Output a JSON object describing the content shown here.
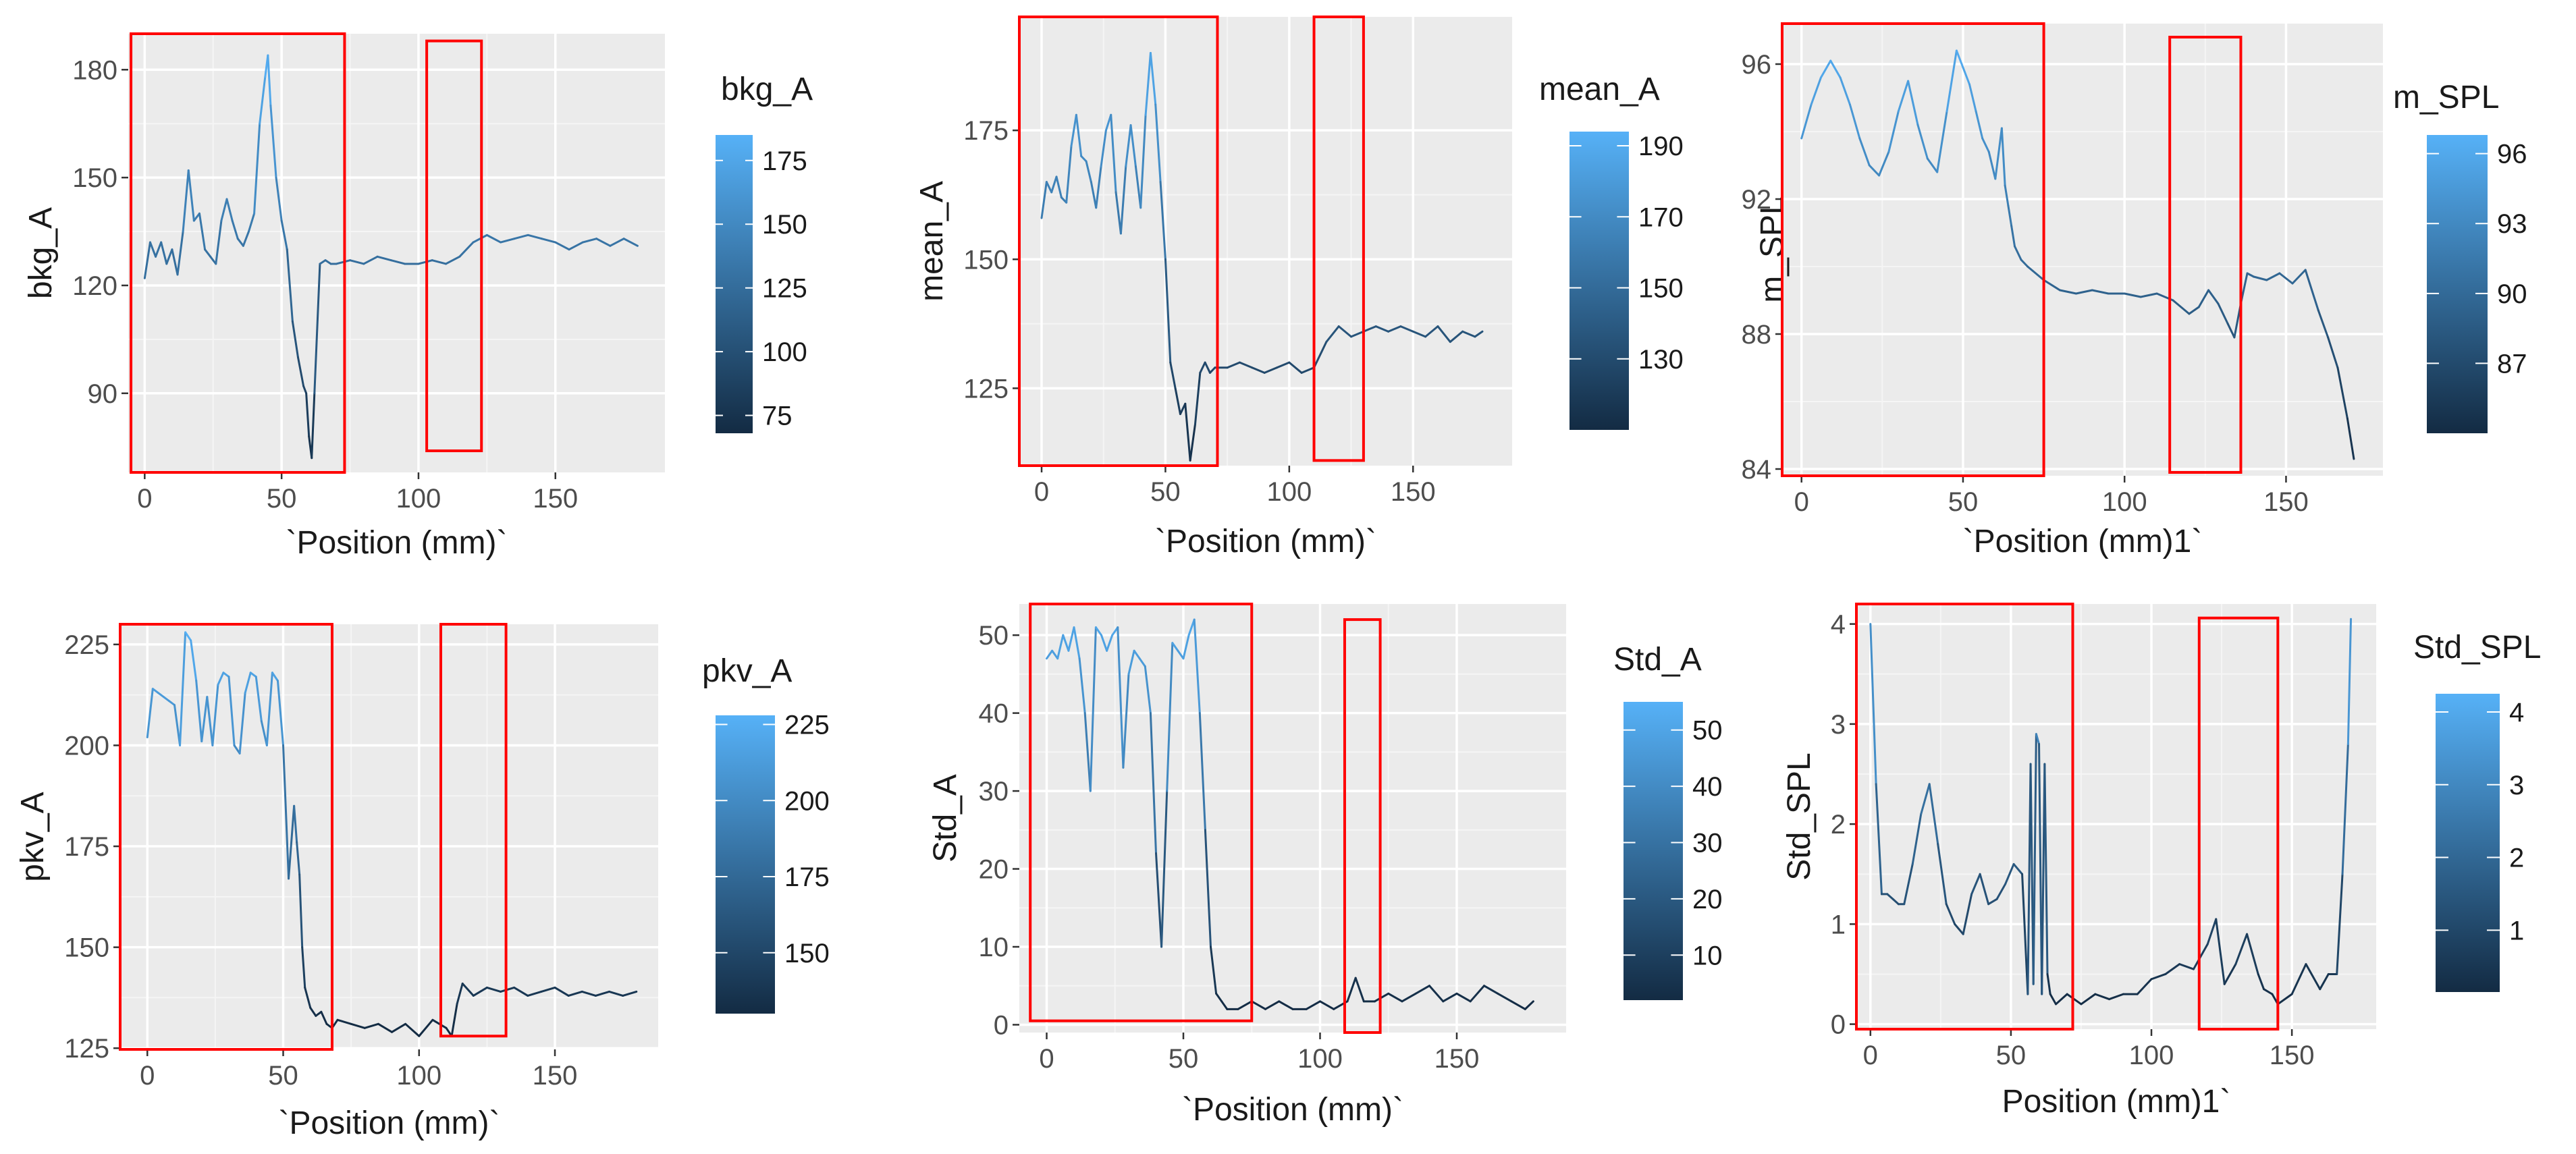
{
  "colors": {
    "panel_bg": "#ebebeb",
    "grid_major": "#ffffff",
    "grid_minor": "#f5f5f5",
    "line_low": "#132b43",
    "line_high": "#56b1f7",
    "highlight_box": "#ff0000"
  },
  "chart_data": [
    {
      "type": "line",
      "color_scale": "gradient",
      "ylabel": "bkg_A",
      "xlabel": "`Position (mm)`",
      "legend_title": "bkg_A",
      "xlim": [
        -6,
        190
      ],
      "ylim": [
        68,
        190
      ],
      "xticks": [
        0,
        50,
        100,
        150
      ],
      "xtick_labels": [
        "0",
        "50",
        "100",
        "150"
      ],
      "yticks": [
        90,
        120,
        150,
        180
      ],
      "ytick_labels": [
        "90",
        "120",
        "150",
        "180"
      ],
      "legend_ticks": [
        175,
        150,
        125,
        100,
        75
      ],
      "legend_tick_labels": [
        "175",
        "150",
        "125",
        "100",
        "75"
      ],
      "legend_range": [
        68,
        185
      ],
      "highlight_ranges": [
        {
          "x": [
            -5,
            73
          ],
          "y": [
            68,
            190
          ]
        },
        {
          "x": [
            103,
            123
          ],
          "y": [
            74,
            188
          ]
        }
      ],
      "x": [
        0,
        2,
        4,
        6,
        8,
        10,
        12,
        14,
        16,
        18,
        20,
        22,
        24,
        26,
        28,
        30,
        32,
        34,
        36,
        38,
        40,
        42,
        44,
        45,
        46,
        48,
        50,
        52,
        54,
        56,
        58,
        59,
        60,
        61,
        62,
        64,
        66,
        68,
        70,
        75,
        80,
        85,
        90,
        95,
        100,
        105,
        110,
        115,
        120,
        125,
        130,
        135,
        140,
        145,
        150,
        155,
        160,
        165,
        170,
        175,
        180
      ],
      "y": [
        122,
        132,
        128,
        132,
        126,
        130,
        123,
        135,
        152,
        138,
        140,
        130,
        128,
        126,
        138,
        144,
        138,
        133,
        131,
        135,
        140,
        165,
        178,
        184,
        170,
        150,
        138,
        130,
        110,
        100,
        92,
        90,
        78,
        72,
        90,
        126,
        127,
        126,
        126,
        127,
        126,
        128,
        127,
        126,
        126,
        127,
        126,
        128,
        132,
        134,
        132,
        133,
        134,
        133,
        132,
        130,
        132,
        133,
        131,
        133,
        131
      ]
    },
    {
      "type": "line",
      "color_scale": "gradient",
      "ylabel": "mean_A",
      "xlabel": "`Position (mm)`",
      "legend_title": "mean_A",
      "xlim": [
        -9,
        190
      ],
      "ylim": [
        110,
        197
      ],
      "xticks": [
        0,
        50,
        100,
        150
      ],
      "xtick_labels": [
        "0",
        "50",
        "100",
        "150"
      ],
      "yticks": [
        125,
        150,
        175
      ],
      "ytick_labels": [
        "125",
        "150",
        "175"
      ],
      "legend_ticks": [
        190,
        170,
        150,
        130
      ],
      "legend_tick_labels": [
        "190",
        "170",
        "150",
        "130"
      ],
      "legend_range": [
        110,
        194
      ],
      "highlight_ranges": [
        {
          "x": [
            -9,
            71
          ],
          "y": [
            110,
            197
          ]
        },
        {
          "x": [
            110,
            130
          ],
          "y": [
            111,
            197
          ]
        }
      ],
      "x": [
        0,
        2,
        4,
        6,
        8,
        10,
        12,
        14,
        16,
        18,
        20,
        22,
        24,
        26,
        28,
        30,
        32,
        34,
        36,
        38,
        40,
        42,
        44,
        46,
        48,
        50,
        52,
        54,
        56,
        58,
        60,
        62,
        64,
        66,
        68,
        70,
        75,
        80,
        85,
        90,
        95,
        100,
        105,
        110,
        115,
        120,
        125,
        130,
        135,
        140,
        145,
        150,
        155,
        160,
        165,
        170,
        175,
        178
      ],
      "y": [
        158,
        165,
        163,
        166,
        162,
        161,
        172,
        178,
        170,
        169,
        165,
        160,
        168,
        175,
        178,
        163,
        155,
        168,
        176,
        168,
        160,
        178,
        190,
        180,
        165,
        150,
        130,
        125,
        120,
        122,
        111,
        118,
        128,
        130,
        128,
        129,
        129,
        130,
        129,
        128,
        129,
        130,
        128,
        129,
        134,
        137,
        135,
        136,
        137,
        136,
        137,
        136,
        135,
        137,
        134,
        136,
        135,
        136
      ]
    },
    {
      "type": "line",
      "color_scale": "gradient",
      "ylabel": "m_SPL",
      "xlabel": "`Position (mm)1`",
      "legend_title": "m_SPL",
      "xlim": [
        -6,
        180
      ],
      "ylim": [
        83.8,
        97.2
      ],
      "xticks": [
        0,
        50,
        100,
        150
      ],
      "xtick_labels": [
        "0",
        "50",
        "100",
        "150"
      ],
      "yticks": [
        84,
        88,
        92,
        96
      ],
      "ytick_labels": [
        "84",
        "88",
        "92",
        "96"
      ],
      "legend_ticks": [
        96,
        93,
        90,
        87
      ],
      "legend_tick_labels": [
        "96",
        "93",
        "90",
        "87"
      ],
      "legend_range": [
        84,
        96.8
      ],
      "highlight_ranges": [
        {
          "x": [
            -6,
            75
          ],
          "y": [
            83.8,
            97.2
          ]
        },
        {
          "x": [
            114,
            136
          ],
          "y": [
            83.9,
            96.8
          ]
        }
      ],
      "x": [
        0,
        3,
        6,
        9,
        12,
        15,
        18,
        21,
        24,
        27,
        30,
        33,
        36,
        39,
        42,
        45,
        48,
        50,
        52,
        54,
        56,
        58,
        60,
        62,
        63,
        64,
        65,
        66,
        68,
        70,
        75,
        80,
        85,
        90,
        95,
        100,
        105,
        110,
        115,
        120,
        123,
        126,
        129,
        132,
        134,
        136,
        138,
        140,
        144,
        148,
        152,
        156,
        160,
        163,
        166,
        169,
        171
      ],
      "y": [
        93.8,
        94.8,
        95.6,
        96.1,
        95.6,
        94.8,
        93.8,
        93.0,
        92.7,
        93.4,
        94.6,
        95.5,
        94.2,
        93.2,
        92.8,
        94.6,
        96.4,
        95.9,
        95.4,
        94.6,
        93.8,
        93.4,
        92.6,
        94.1,
        92.4,
        91.8,
        91.2,
        90.6,
        90.2,
        90.0,
        89.6,
        89.3,
        89.2,
        89.3,
        89.2,
        89.2,
        89.1,
        89.2,
        89.0,
        88.6,
        88.8,
        89.3,
        88.9,
        88.3,
        87.9,
        88.9,
        89.8,
        89.7,
        89.6,
        89.8,
        89.5,
        89.9,
        88.7,
        87.9,
        87.0,
        85.5,
        84.3
      ]
    },
    {
      "type": "line",
      "color_scale": "gradient",
      "ylabel": "pkv_A",
      "xlabel": "`Position (mm)`",
      "legend_title": "pkv_A",
      "xlim": [
        -10,
        188
      ],
      "ylim": [
        124.7,
        230
      ],
      "xticks": [
        0,
        50,
        100,
        150
      ],
      "xtick_labels": [
        "0",
        "50",
        "100",
        "150"
      ],
      "yticks": [
        125,
        150,
        175,
        200,
        225
      ],
      "ytick_labels": [
        "125",
        "150",
        "175",
        "200",
        "225"
      ],
      "legend_ticks": [
        225,
        200,
        175,
        150
      ],
      "legend_tick_labels": [
        "225",
        "200",
        "175",
        "150"
      ],
      "legend_range": [
        130,
        228
      ],
      "highlight_ranges": [
        {
          "x": [
            -10,
            68
          ],
          "y": [
            124.7,
            230
          ]
        },
        {
          "x": [
            108,
            132
          ],
          "y": [
            128,
            230
          ]
        }
      ],
      "x": [
        0,
        2,
        4,
        6,
        8,
        10,
        12,
        14,
        16,
        18,
        20,
        22,
        24,
        26,
        28,
        30,
        32,
        34,
        36,
        38,
        40,
        42,
        44,
        46,
        48,
        50,
        52,
        54,
        55,
        56,
        57,
        58,
        60,
        62,
        64,
        66,
        68,
        70,
        75,
        80,
        85,
        90,
        95,
        100,
        105,
        110,
        112,
        114,
        116,
        120,
        125,
        130,
        135,
        140,
        145,
        150,
        155,
        160,
        165,
        170,
        175,
        180
      ],
      "y": [
        202,
        214,
        213,
        212,
        211,
        210,
        200,
        228,
        226,
        216,
        201,
        212,
        200,
        215,
        218,
        217,
        200,
        198,
        213,
        218,
        217,
        206,
        200,
        218,
        216,
        200,
        167,
        185,
        176,
        168,
        150,
        140,
        135,
        133,
        134,
        131,
        130,
        132,
        131,
        130,
        131,
        129,
        131,
        128,
        132,
        130,
        128,
        136,
        141,
        138,
        140,
        139,
        140,
        138,
        139,
        140,
        138,
        139,
        138,
        139,
        138,
        139
      ]
    },
    {
      "type": "line",
      "color_scale": "gradient",
      "ylabel": "Std_A",
      "xlabel": "`Position (mm)`",
      "legend_title": "Std_A",
      "xlim": [
        -10,
        190
      ],
      "ylim": [
        -1,
        54
      ],
      "xticks": [
        0,
        50,
        100,
        150
      ],
      "xtick_labels": [
        "0",
        "50",
        "100",
        "150"
      ],
      "yticks": [
        0,
        10,
        20,
        30,
        40,
        50
      ],
      "ytick_labels": [
        "0",
        "10",
        "20",
        "30",
        "40",
        "50"
      ],
      "legend_ticks": [
        50,
        40,
        30,
        20,
        10
      ],
      "legend_tick_labels": [
        "50",
        "40",
        "30",
        "20",
        "10"
      ],
      "legend_range": [
        2,
        55
      ],
      "highlight_ranges": [
        {
          "x": [
            -6,
            75
          ],
          "y": [
            0.5,
            54
          ]
        },
        {
          "x": [
            109,
            122
          ],
          "y": [
            -1,
            52
          ]
        }
      ],
      "x": [
        0,
        2,
        4,
        6,
        8,
        10,
        12,
        14,
        16,
        18,
        20,
        22,
        24,
        26,
        28,
        30,
        32,
        34,
        36,
        38,
        40,
        42,
        44,
        46,
        48,
        50,
        52,
        54,
        56,
        58,
        60,
        62,
        64,
        66,
        70,
        75,
        80,
        85,
        90,
        95,
        100,
        105,
        110,
        113,
        116,
        120,
        125,
        130,
        135,
        140,
        145,
        150,
        155,
        160,
        165,
        170,
        175,
        178
      ],
      "y": [
        47,
        48,
        47,
        50,
        48,
        51,
        47,
        40,
        30,
        51,
        50,
        48,
        50,
        51,
        33,
        45,
        48,
        47,
        46,
        40,
        22,
        10,
        30,
        49,
        48,
        47,
        50,
        52,
        40,
        25,
        10,
        4,
        3,
        2,
        2,
        3,
        2,
        3,
        2,
        2,
        3,
        2,
        3,
        6,
        3,
        3,
        4,
        3,
        4,
        5,
        3,
        4,
        3,
        5,
        4,
        3,
        2,
        3
      ]
    },
    {
      "type": "line",
      "color_scale": "gradient",
      "ylabel": "Std_SPL",
      "xlabel": "Position (mm)1`",
      "legend_title": "Std_SPL",
      "xlim": [
        -5,
        180
      ],
      "ylim": [
        -0.05,
        4.2
      ],
      "xticks": [
        0,
        50,
        100,
        150
      ],
      "xtick_labels": [
        "0",
        "50",
        "100",
        "150"
      ],
      "yticks": [
        0,
        1,
        2,
        3,
        4
      ],
      "ytick_labels": [
        "0",
        "1",
        "2",
        "3",
        "4"
      ],
      "legend_ticks": [
        4,
        3,
        2,
        1
      ],
      "legend_tick_labels": [
        "4",
        "3",
        "2",
        "1"
      ],
      "legend_range": [
        0.15,
        4.25
      ],
      "highlight_ranges": [
        {
          "x": [
            -5,
            72
          ],
          "y": [
            -0.05,
            4.2
          ]
        },
        {
          "x": [
            117,
            145
          ],
          "y": [
            -0.05,
            4.06
          ]
        }
      ],
      "x": [
        0,
        2,
        4,
        6,
        8,
        10,
        12,
        15,
        18,
        21,
        24,
        27,
        30,
        33,
        36,
        39,
        42,
        45,
        48,
        51,
        54,
        56,
        57,
        58,
        59,
        60,
        61,
        62,
        63,
        64,
        66,
        70,
        75,
        80,
        85,
        90,
        95,
        100,
        105,
        110,
        115,
        120,
        123,
        126,
        130,
        134,
        138,
        140,
        143,
        145,
        150,
        155,
        160,
        163,
        166,
        168,
        170,
        171
      ],
      "y": [
        4.0,
        2.4,
        1.3,
        1.3,
        1.25,
        1.2,
        1.2,
        1.6,
        2.1,
        2.4,
        1.8,
        1.2,
        1.0,
        0.9,
        1.3,
        1.5,
        1.2,
        1.25,
        1.4,
        1.6,
        1.5,
        0.3,
        2.6,
        0.4,
        2.9,
        2.8,
        0.3,
        2.6,
        0.5,
        0.3,
        0.2,
        0.3,
        0.2,
        0.3,
        0.25,
        0.3,
        0.3,
        0.45,
        0.5,
        0.6,
        0.55,
        0.8,
        1.05,
        0.4,
        0.6,
        0.9,
        0.5,
        0.35,
        0.3,
        0.2,
        0.3,
        0.6,
        0.35,
        0.5,
        0.5,
        1.5,
        2.8,
        4.05
      ]
    }
  ]
}
